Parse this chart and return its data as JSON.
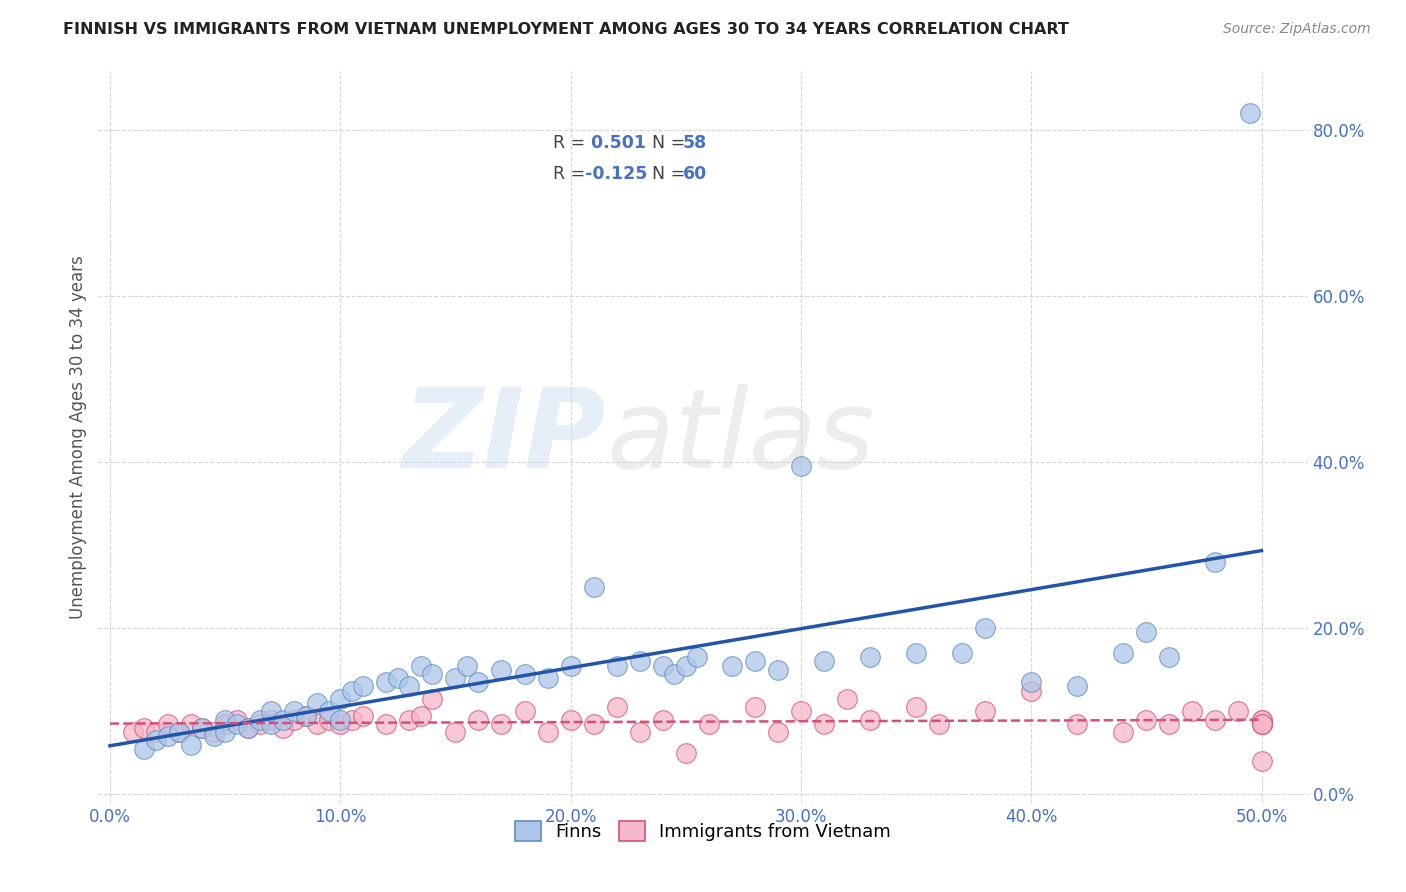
{
  "title": "FINNISH VS IMMIGRANTS FROM VIETNAM UNEMPLOYMENT AMONG AGES 30 TO 34 YEARS CORRELATION CHART",
  "source": "Source: ZipAtlas.com",
  "xlabel_vals": [
    0.0,
    0.1,
    0.2,
    0.3,
    0.4,
    0.5
  ],
  "ylabel": "Unemployment Among Ages 30 to 34 years",
  "ylabel_vals": [
    0.0,
    0.2,
    0.4,
    0.6,
    0.8
  ],
  "xlim": [
    -0.005,
    0.52
  ],
  "ylim": [
    -0.01,
    0.87
  ],
  "finn_color": "#aec6e8",
  "finn_edge_color": "#5b8ec4",
  "finn_line_color": "#2255aa",
  "viet_color": "#f4b8c8",
  "viet_edge_color": "#d4507a",
  "viet_line_color": "#d4507a",
  "finn_R": 0.501,
  "finn_N": 58,
  "viet_R": -0.125,
  "viet_N": 60,
  "legend_label_finn": "Finns",
  "legend_label_viet": "Immigrants from Vietnam",
  "finn_scatter_x": [
    0.015,
    0.02,
    0.025,
    0.03,
    0.035,
    0.04,
    0.045,
    0.05,
    0.05,
    0.055,
    0.06,
    0.065,
    0.07,
    0.07,
    0.075,
    0.08,
    0.085,
    0.09,
    0.095,
    0.1,
    0.1,
    0.105,
    0.11,
    0.12,
    0.125,
    0.13,
    0.135,
    0.14,
    0.15,
    0.155,
    0.16,
    0.17,
    0.18,
    0.19,
    0.2,
    0.21,
    0.22,
    0.23,
    0.24,
    0.245,
    0.25,
    0.255,
    0.27,
    0.28,
    0.29,
    0.3,
    0.31,
    0.33,
    0.35,
    0.37,
    0.38,
    0.4,
    0.42,
    0.44,
    0.45,
    0.46,
    0.48,
    0.495
  ],
  "finn_scatter_y": [
    0.055,
    0.065,
    0.07,
    0.075,
    0.06,
    0.08,
    0.07,
    0.09,
    0.075,
    0.085,
    0.08,
    0.09,
    0.085,
    0.1,
    0.09,
    0.1,
    0.095,
    0.11,
    0.1,
    0.115,
    0.09,
    0.125,
    0.13,
    0.135,
    0.14,
    0.13,
    0.155,
    0.145,
    0.14,
    0.155,
    0.135,
    0.15,
    0.145,
    0.14,
    0.155,
    0.25,
    0.155,
    0.16,
    0.155,
    0.145,
    0.155,
    0.165,
    0.155,
    0.16,
    0.15,
    0.395,
    0.16,
    0.165,
    0.17,
    0.17,
    0.2,
    0.135,
    0.13,
    0.17,
    0.195,
    0.165,
    0.28,
    0.82
  ],
  "viet_scatter_x": [
    0.01,
    0.015,
    0.02,
    0.025,
    0.03,
    0.035,
    0.04,
    0.045,
    0.05,
    0.055,
    0.06,
    0.065,
    0.07,
    0.075,
    0.08,
    0.085,
    0.09,
    0.095,
    0.1,
    0.105,
    0.11,
    0.12,
    0.13,
    0.135,
    0.14,
    0.15,
    0.16,
    0.17,
    0.18,
    0.19,
    0.2,
    0.21,
    0.22,
    0.23,
    0.24,
    0.25,
    0.26,
    0.28,
    0.29,
    0.3,
    0.31,
    0.32,
    0.33,
    0.35,
    0.36,
    0.38,
    0.4,
    0.42,
    0.44,
    0.45,
    0.46,
    0.47,
    0.48,
    0.49,
    0.5,
    0.5,
    0.5,
    0.5,
    0.5,
    0.5
  ],
  "viet_scatter_y": [
    0.075,
    0.08,
    0.075,
    0.085,
    0.075,
    0.085,
    0.08,
    0.075,
    0.085,
    0.09,
    0.08,
    0.085,
    0.09,
    0.08,
    0.09,
    0.095,
    0.085,
    0.09,
    0.085,
    0.09,
    0.095,
    0.085,
    0.09,
    0.095,
    0.115,
    0.075,
    0.09,
    0.085,
    0.1,
    0.075,
    0.09,
    0.085,
    0.105,
    0.075,
    0.09,
    0.05,
    0.085,
    0.105,
    0.075,
    0.1,
    0.085,
    0.115,
    0.09,
    0.105,
    0.085,
    0.1,
    0.125,
    0.085,
    0.075,
    0.09,
    0.085,
    0.1,
    0.09,
    0.1,
    0.085,
    0.09,
    0.09,
    0.085,
    0.04,
    0.085
  ],
  "background_color": "#ffffff",
  "grid_color": "#cccccc",
  "tick_color": "#4472c4",
  "label_color": "#555555",
  "title_color": "#222222"
}
